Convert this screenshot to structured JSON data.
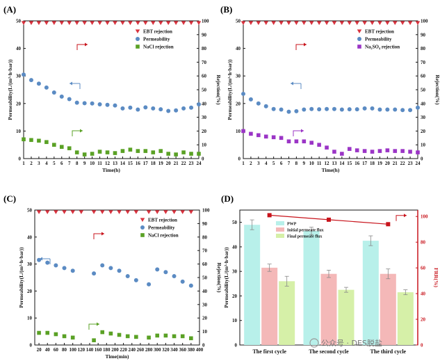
{
  "colors": {
    "ebt": "#d9333f",
    "perm": "#5b8bc3",
    "nacl": "#5aa125",
    "na2so4": "#9b35c6",
    "pwp": "#b8f0ea",
    "initial": "#f4b8b8",
    "final": "#d6f0a8",
    "frr": "#c8131b",
    "arrow_red": "#c8131b",
    "arrow_blue": "#5b8bc3",
    "arrow_green": "#5aa125",
    "arrow_purple": "#9b35c6"
  },
  "watermark": "公众号 · DES脱盐",
  "chart_data": [
    {
      "panel": "(A)",
      "type": "scatter",
      "xlabel": "Time(h)",
      "ylabel": "Permeability(L/(m²·h·bar))",
      "y2label": "Rejection(%)",
      "xlim": [
        1,
        24
      ],
      "ylim": [
        0,
        50
      ],
      "y2lim": [
        0,
        100
      ],
      "x": [
        1,
        2,
        3,
        4,
        5,
        6,
        7,
        8,
        9,
        10,
        11,
        12,
        13,
        14,
        15,
        16,
        17,
        18,
        19,
        20,
        21,
        22,
        23,
        24
      ],
      "xticks": [
        "1",
        "2",
        "3",
        "4",
        "5",
        "6",
        "7",
        "8",
        "9",
        "10",
        "11",
        "12",
        "13",
        "14",
        "15",
        "16",
        "17",
        "18",
        "19",
        "20",
        "21",
        "22",
        "23",
        "24"
      ],
      "yticks": [
        "0",
        "10",
        "20",
        "30",
        "40",
        "50"
      ],
      "y2ticks": [
        "0",
        "10",
        "20",
        "30",
        "40",
        "50",
        "60",
        "70",
        "80",
        "90",
        "100"
      ],
      "legend": [
        "EBT rejection",
        "Permeability",
        "NaCl rejection"
      ],
      "series": [
        {
          "name": "EBT rejection",
          "axis": "right",
          "marker": "triangle-down",
          "values": [
            98.5,
            98.5,
            98.5,
            98.5,
            98.5,
            98.5,
            98.5,
            98.5,
            98.5,
            98.5,
            98.5,
            98.5,
            98.5,
            98.5,
            98.5,
            98.5,
            98.5,
            98.5,
            98.5,
            98.5,
            98.5,
            98.5,
            98.5,
            98.5
          ]
        },
        {
          "name": "Permeability",
          "axis": "left",
          "marker": "circle",
          "values": [
            30.5,
            28.5,
            27.2,
            25.8,
            24.0,
            22.5,
            21.6,
            20.3,
            20.1,
            20.0,
            19.7,
            19.5,
            19.3,
            18.2,
            18.5,
            17.8,
            18.6,
            18.2,
            17.9,
            17.3,
            17.5,
            18.2,
            18.5,
            19.7
          ]
        },
        {
          "name": "NaCl rejection",
          "axis": "right",
          "marker": "square",
          "values": [
            14.0,
            13.5,
            13.0,
            12.0,
            10.0,
            8.5,
            7.5,
            4.5,
            3.0,
            3.5,
            5.0,
            4.5,
            4.0,
            5.5,
            6.5,
            5.5,
            5.5,
            4.5,
            5.5,
            3.5,
            3.0,
            4.5,
            3.5,
            3.5
          ]
        }
      ],
      "arrows": [
        {
          "dir": "right",
          "color": "red"
        },
        {
          "dir": "left",
          "color": "blue"
        },
        {
          "dir": "right",
          "color": "green"
        }
      ]
    },
    {
      "panel": "(B)",
      "type": "scatter",
      "xlabel": "Time(h)",
      "ylabel": "Permeability(L/(m²·h·bar))",
      "y2label": "Rejection(%)",
      "xlim": [
        1,
        24
      ],
      "ylim": [
        0,
        50
      ],
      "y2lim": [
        0,
        100
      ],
      "x": [
        1,
        2,
        3,
        4,
        5,
        6,
        7,
        8,
        9,
        10,
        11,
        12,
        13,
        14,
        15,
        16,
        17,
        18,
        19,
        20,
        21,
        22,
        23,
        24
      ],
      "xticks": [
        "1",
        "2",
        "3",
        "4",
        "5",
        "6",
        "7",
        "8",
        "9",
        "10",
        "11",
        "12",
        "13",
        "14",
        "15",
        "16",
        "17",
        "18",
        "19",
        "20",
        "21",
        "22",
        "23",
        "24"
      ],
      "yticks": [
        "0",
        "10",
        "20",
        "30",
        "40",
        "50"
      ],
      "y2ticks": [
        "0",
        "10",
        "20",
        "30",
        "40",
        "50",
        "60",
        "70",
        "80",
        "90",
        "100"
      ],
      "legend": [
        "EBT rejection",
        "Permeability",
        "Na₂SO₄ rejection"
      ],
      "series": [
        {
          "name": "EBT rejection",
          "axis": "right",
          "marker": "triangle-down",
          "values": [
            98.5,
            98.5,
            98.5,
            98.5,
            98.5,
            98.5,
            98.5,
            98.5,
            98.5,
            98.5,
            98.5,
            98.5,
            98.5,
            98.5,
            98.5,
            98.5,
            98.5,
            98.5,
            98.5,
            98.5,
            98.5,
            98.5,
            98.5,
            98.5
          ]
        },
        {
          "name": "Permeability",
          "axis": "left",
          "marker": "circle",
          "values": [
            23.5,
            21.5,
            20.0,
            19.0,
            18.0,
            17.8,
            17.0,
            17.2,
            17.8,
            18.0,
            17.9,
            18.0,
            18.0,
            17.8,
            17.9,
            17.9,
            18.2,
            18.2,
            17.8,
            17.8,
            17.8,
            17.6,
            17.6,
            18.5
          ]
        },
        {
          "name": "Na₂SO₄ rejection",
          "axis": "right",
          "marker": "square",
          "values": [
            20.0,
            18.0,
            17.0,
            16.0,
            15.5,
            15.0,
            12.5,
            12.5,
            12.5,
            11.5,
            10.0,
            8.0,
            5.0,
            3.5,
            7.0,
            6.0,
            5.5,
            5.0,
            5.5,
            6.0,
            5.5,
            5.5,
            5.0,
            4.5
          ]
        }
      ],
      "arrows": [
        {
          "dir": "right",
          "color": "red"
        },
        {
          "dir": "left",
          "color": "blue"
        },
        {
          "dir": "right",
          "color": "purple"
        }
      ]
    },
    {
      "panel": "(C)",
      "type": "scatter",
      "xlabel": "Time(min)",
      "ylabel": "Permeability(L/(m²·h·bar))",
      "y2label": "Rejection(%)",
      "xlim": [
        10,
        400
      ],
      "ylim": [
        0,
        50
      ],
      "y2lim": [
        0,
        100
      ],
      "xticks": [
        "20",
        "40",
        "60",
        "80",
        "100",
        "120",
        "140",
        "160",
        "180",
        "200",
        "220",
        "240",
        "260",
        "280",
        "300",
        "320",
        "340",
        "360",
        "380",
        "400"
      ],
      "xtick_values": [
        20,
        40,
        60,
        80,
        100,
        120,
        140,
        160,
        180,
        200,
        220,
        240,
        260,
        280,
        300,
        320,
        340,
        360,
        380,
        400
      ],
      "yticks": [
        "0",
        "10",
        "20",
        "30",
        "40",
        "50"
      ],
      "y2ticks": [
        "0",
        "10",
        "20",
        "30",
        "40",
        "50",
        "60",
        "70",
        "80",
        "90",
        "100"
      ],
      "legend": [
        "EBT rejection",
        "Permeability",
        "NaCl rejection"
      ],
      "series": [
        {
          "name": "EBT rejection",
          "axis": "right",
          "marker": "triangle-down",
          "x": [
            20,
            40,
            60,
            80,
            100,
            120,
            150,
            170,
            190,
            210,
            230,
            250,
            280,
            300,
            320,
            340,
            360,
            380
          ],
          "values": [
            98.5,
            98.5,
            98.5,
            98.5,
            98.5,
            98.5,
            98.5,
            98.5,
            98.5,
            98.5,
            98.5,
            98.5,
            98.5,
            98.5,
            98.5,
            98.5,
            98.5,
            98.5
          ]
        },
        {
          "name": "Permeability",
          "axis": "left",
          "marker": "circle",
          "x": [
            20,
            40,
            60,
            80,
            100,
            150,
            170,
            190,
            210,
            230,
            250,
            280,
            300,
            320,
            340,
            360,
            380
          ],
          "values": [
            31.5,
            30.5,
            29.5,
            28.5,
            27.5,
            26.5,
            29.5,
            28.5,
            27.5,
            25.5,
            24.0,
            22.5,
            28.0,
            27.0,
            25.5,
            23.5,
            22.0
          ]
        },
        {
          "name": "NaCl rejection",
          "axis": "right",
          "marker": "square",
          "x": [
            20,
            40,
            60,
            80,
            100,
            150,
            170,
            190,
            210,
            230,
            250,
            280,
            300,
            320,
            340,
            360,
            380
          ],
          "values": [
            9.0,
            9.0,
            8.0,
            6.5,
            5.5,
            3.5,
            9.5,
            8.5,
            7.5,
            6.5,
            6.0,
            5.5,
            7.0,
            7.0,
            6.5,
            6.5,
            5.0
          ]
        }
      ],
      "arrows": [
        {
          "dir": "right",
          "color": "red"
        },
        {
          "dir": "left",
          "color": "blue"
        },
        {
          "dir": "right",
          "color": "green"
        }
      ]
    },
    {
      "panel": "(D)",
      "type": "bar",
      "categories": [
        "The first cycle",
        "The second cycle",
        "The third cycle"
      ],
      "ylabel": "Permeability(L/(m²·h·bar))",
      "y2label": "FRR(%)",
      "ylim": [
        0,
        55
      ],
      "y2lim": [
        0,
        105
      ],
      "yticks": [
        "0",
        "10",
        "20",
        "30",
        "40",
        "50"
      ],
      "y2ticks": [
        "0",
        "20",
        "40",
        "60",
        "80",
        "100"
      ],
      "legend": [
        "PWP",
        "Initial permeate flux",
        "Final permeate flux"
      ],
      "series": [
        {
          "name": "PWP",
          "values": [
            49,
            46.5,
            42.5
          ],
          "errors": [
            2.0,
            1.5,
            2.0
          ]
        },
        {
          "name": "Initial permeate flux",
          "values": [
            31.5,
            29,
            29
          ],
          "errors": [
            1.5,
            1.5,
            2.0
          ]
        },
        {
          "name": "Final permeate flux",
          "values": [
            26,
            22.5,
            21.5
          ],
          "errors": [
            2.0,
            1.0,
            1.0
          ]
        }
      ],
      "frr": {
        "name": "FRR",
        "axis": "right",
        "values": [
          101,
          97.5,
          94
        ]
      }
    }
  ]
}
